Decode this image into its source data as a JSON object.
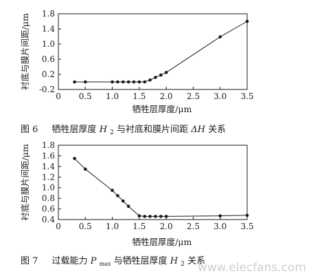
{
  "chart_data": [
    {
      "type": "line",
      "ylabel": "衬底与膜片间距/μm",
      "xlabel": "牺牲层厚度/μm",
      "xlim": [
        0,
        3.5
      ],
      "ylim": [
        -0.2,
        1.8
      ],
      "xticks": [
        0,
        0.5,
        1.0,
        1.5,
        2.0,
        2.5,
        3.0,
        3.5
      ],
      "xtick_labels": [
        "0",
        "0.5",
        "1.0",
        "1.5",
        "2.0",
        "2.5",
        "3.0",
        "3.5"
      ],
      "yticks": [
        -0.2,
        0.2,
        0.6,
        1.0,
        1.4,
        1.8
      ],
      "ytick_labels": [
        "-0.2",
        "0.2",
        "0.6",
        "1.0",
        "1.4",
        "1.8"
      ],
      "grid": false,
      "series": [
        {
          "x": [
            0.3,
            0.5,
            1.0,
            1.1,
            1.2,
            1.3,
            1.4,
            1.5,
            1.6,
            1.7,
            1.8,
            1.9,
            2.0,
            3.0,
            3.5
          ],
          "values": [
            0.0,
            0.0,
            0.0,
            0.0,
            0.0,
            0.0,
            0.0,
            0.0,
            0.0,
            0.05,
            0.12,
            0.18,
            0.25,
            1.19,
            1.6
          ]
        }
      ],
      "caption": {
        "label": "图 6",
        "text_before": "牺牲层厚度 ",
        "var1": "H",
        "var1_sub": "2",
        "text_mid": " 与衬底和膜片间距 ",
        "var2": "ΔH",
        "text_after": " 关系"
      }
    },
    {
      "type": "line",
      "ylabel": "衬底与膜片间距/μm",
      "xlabel": "牺牲层厚度/μm",
      "xlim": [
        0,
        3.5
      ],
      "ylim": [
        0.4,
        1.8
      ],
      "xticks": [
        0,
        0.5,
        1.0,
        1.5,
        2.0,
        2.5,
        3.0,
        3.5
      ],
      "xtick_labels": [
        "0",
        "0.5",
        "1.0",
        "1.5",
        "2.0",
        "2.5",
        "3.0",
        "3.5"
      ],
      "yticks": [
        0.4,
        0.6,
        0.8,
        1.0,
        1.2,
        1.4,
        1.6,
        1.8
      ],
      "ytick_labels": [
        "0.4",
        "0.6",
        "0.8",
        "1.0",
        "1.2",
        "1.4",
        "1.6",
        "1.8"
      ],
      "grid": false,
      "series": [
        {
          "x": [
            0.3,
            0.5,
            1.0,
            1.1,
            1.2,
            1.3,
            1.5,
            1.6,
            1.7,
            1.8,
            1.9,
            2.0,
            3.0,
            3.5
          ],
          "values": [
            1.55,
            1.35,
            0.95,
            0.85,
            0.75,
            0.65,
            0.47,
            0.46,
            0.46,
            0.46,
            0.46,
            0.46,
            0.47,
            0.48
          ]
        }
      ],
      "caption": {
        "label": "图 7",
        "text_before": "过载能力 ",
        "var1": "P",
        "var1_sub": "max",
        "text_mid": " 与牺牲层厚度 ",
        "var2": "H",
        "var2_sub": "2",
        "text_after": " 关系"
      }
    }
  ],
  "watermark": "www.elecfans.com"
}
